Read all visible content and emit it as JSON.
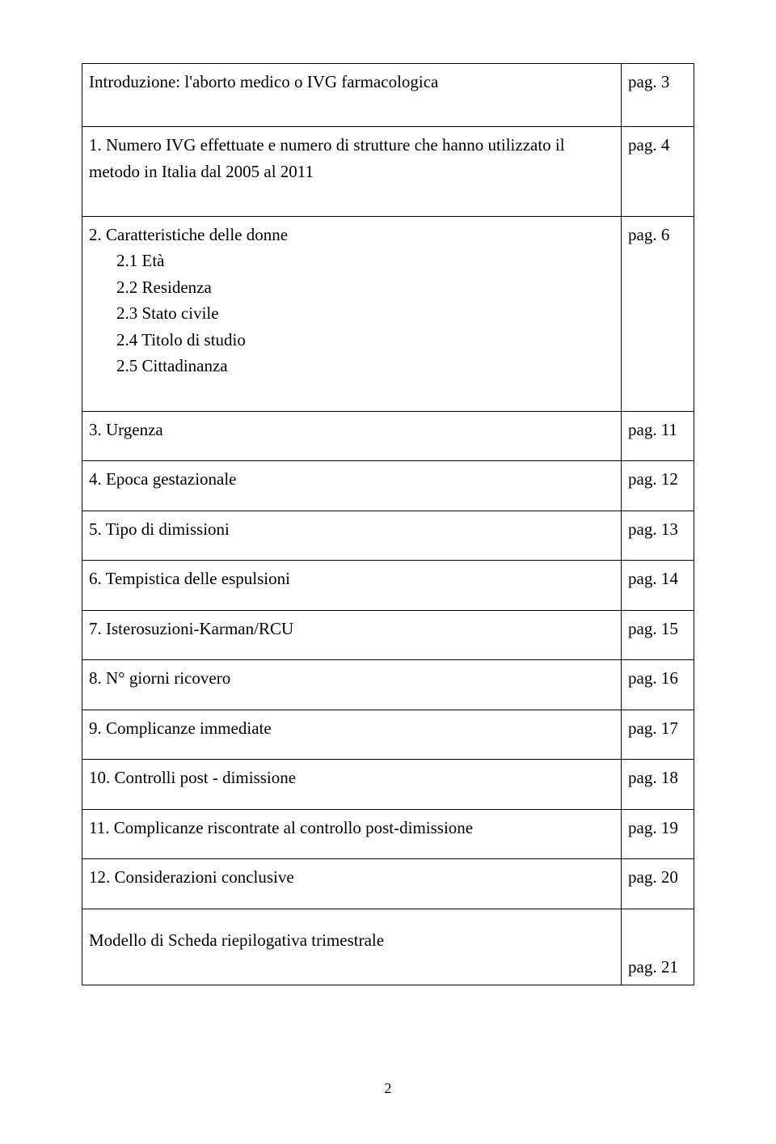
{
  "rows": [
    {
      "title": "Introduzione: l'aborto medico o IVG farmacologica",
      "sub": [],
      "page": "pag. 3",
      "page_valign": "top",
      "text_padtop": true
    },
    {
      "title": "1.  Numero IVG effettuate e numero di strutture che hanno utilizzato il metodo in Italia dal 2005 al 2011",
      "sub": [],
      "page": "pag. 4",
      "page_valign": "top",
      "text_padtop": true
    },
    {
      "title": "2.  Caratteristiche delle donne",
      "sub": [
        "2.1  Età",
        "2.2 Residenza",
        "2.3 Stato civile",
        "2.4 Titolo di studio",
        "2.5 Cittadinanza"
      ],
      "page": "pag. 6",
      "page_valign": "top",
      "text_padtop": true
    },
    {
      "title": "3.  Urgenza",
      "sub": [],
      "page": "pag. 11",
      "page_valign": "top",
      "text_padtop": false
    },
    {
      "title": "4.  Epoca gestazionale",
      "sub": [],
      "page": "pag. 12",
      "page_valign": "top",
      "text_padtop": false
    },
    {
      "title": "5.  Tipo di dimissioni",
      "sub": [],
      "page": "pag. 13",
      "page_valign": "top",
      "text_padtop": false
    },
    {
      "title": "6.  Tempistica delle espulsioni",
      "sub": [],
      "page": "pag. 14",
      "page_valign": "top",
      "text_padtop": false
    },
    {
      "title": "7.  Isterosuzioni-Karman/RCU",
      "sub": [],
      "page": "pag. 15",
      "page_valign": "top",
      "text_padtop": false
    },
    {
      "title": "8.  N° giorni ricovero",
      "sub": [],
      "page": "pag. 16",
      "page_valign": "top",
      "text_padtop": false
    },
    {
      "title": "9.  Complicanze immediate",
      "sub": [],
      "page": "pag. 17",
      "page_valign": "top",
      "text_padtop": false
    },
    {
      "title": "10. Controlli post - dimissione",
      "sub": [],
      "page": "pag. 18",
      "page_valign": "top",
      "text_padtop": false
    },
    {
      "title": "11. Complicanze riscontrate al controllo post-dimissione",
      "sub": [],
      "page": "pag. 19",
      "page_valign": "top",
      "text_padtop": false
    },
    {
      "title": "12. Considerazioni conclusive",
      "sub": [],
      "page": "pag. 20",
      "page_valign": "top",
      "text_padtop": false
    },
    {
      "title": "Modello di Scheda riepilogativa trimestrale",
      "sub": [],
      "page": "pag. 21",
      "page_valign": "bottom",
      "text_padtop": true
    }
  ],
  "footer": "2",
  "style": {
    "border_color": "#000000",
    "font_family": "Times New Roman",
    "font_size_pt": 16,
    "background": "#ffffff",
    "text_color": "#000000",
    "col_widths": {
      "text": "auto",
      "page": 90
    }
  }
}
